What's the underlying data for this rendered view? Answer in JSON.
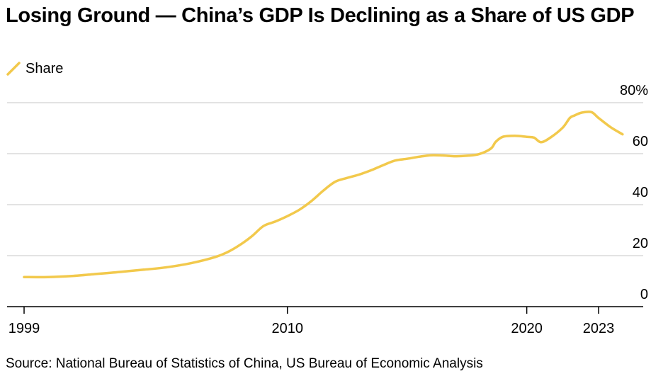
{
  "title": "Losing Ground — China’s GDP Is Declining as a Share of US GDP",
  "source": "Source: National Bureau of Statistics of China, US Bureau of Economic Analysis",
  "colors": {
    "series": "#F2C94C",
    "grid": "#DADADA",
    "axis": "#000000"
  },
  "chart_data": {
    "type": "line",
    "title": "Losing Ground — China’s GDP Is Declining as a Share of US GDP",
    "xlabel": "",
    "ylabel": "",
    "xlim": [
      1999,
      2025
    ],
    "ylim": [
      0,
      80
    ],
    "y_ticks": [
      {
        "value": 0,
        "label": "0"
      },
      {
        "value": 20,
        "label": "20"
      },
      {
        "value": 40,
        "label": "40"
      },
      {
        "value": 60,
        "label": "60"
      },
      {
        "value": 80,
        "label": "80%"
      }
    ],
    "x_ticks": [
      {
        "value": 1999,
        "label": "1999"
      },
      {
        "value": 2010,
        "label": "2010"
      },
      {
        "value": 2020,
        "label": "2020"
      },
      {
        "value": 2023,
        "label": "2023"
      }
    ],
    "grid": true,
    "legend": "top-left",
    "series": [
      {
        "name": "Share",
        "points": [
          [
            1999.0,
            11.6
          ],
          [
            2000.0,
            11.6
          ],
          [
            2001.0,
            12.0
          ],
          [
            2002.0,
            12.8
          ],
          [
            2003.0,
            13.6
          ],
          [
            2004.0,
            14.5
          ],
          [
            2005.0,
            15.5
          ],
          [
            2006.0,
            17.1
          ],
          [
            2007.0,
            19.5
          ],
          [
            2007.5,
            21.4
          ],
          [
            2008.0,
            24.1
          ],
          [
            2008.5,
            27.5
          ],
          [
            2009.0,
            31.6
          ],
          [
            2009.5,
            33.4
          ],
          [
            2010.0,
            35.5
          ],
          [
            2010.5,
            38.0
          ],
          [
            2011.0,
            41.4
          ],
          [
            2011.5,
            45.5
          ],
          [
            2012.0,
            49.0
          ],
          [
            2012.5,
            50.5
          ],
          [
            2013.0,
            51.8
          ],
          [
            2013.5,
            53.5
          ],
          [
            2014.0,
            55.5
          ],
          [
            2014.5,
            57.3
          ],
          [
            2015.0,
            58.0
          ],
          [
            2015.5,
            58.8
          ],
          [
            2016.0,
            59.4
          ],
          [
            2016.5,
            59.3
          ],
          [
            2017.0,
            59.0
          ],
          [
            2017.5,
            59.2
          ],
          [
            2018.0,
            59.8
          ],
          [
            2018.5,
            62.0
          ],
          [
            2018.7,
            64.6
          ],
          [
            2019.0,
            66.6
          ],
          [
            2019.5,
            67.0
          ],
          [
            2020.0,
            66.6
          ],
          [
            2020.3,
            66.3
          ],
          [
            2020.6,
            64.5
          ],
          [
            2021.0,
            66.4
          ],
          [
            2021.5,
            70.2
          ],
          [
            2021.8,
            74.0
          ],
          [
            2022.0,
            75.0
          ],
          [
            2022.3,
            76.1
          ],
          [
            2022.7,
            76.3
          ],
          [
            2023.0,
            74.0
          ],
          [
            2023.5,
            70.4
          ],
          [
            2024.0,
            67.6
          ]
        ]
      }
    ]
  }
}
